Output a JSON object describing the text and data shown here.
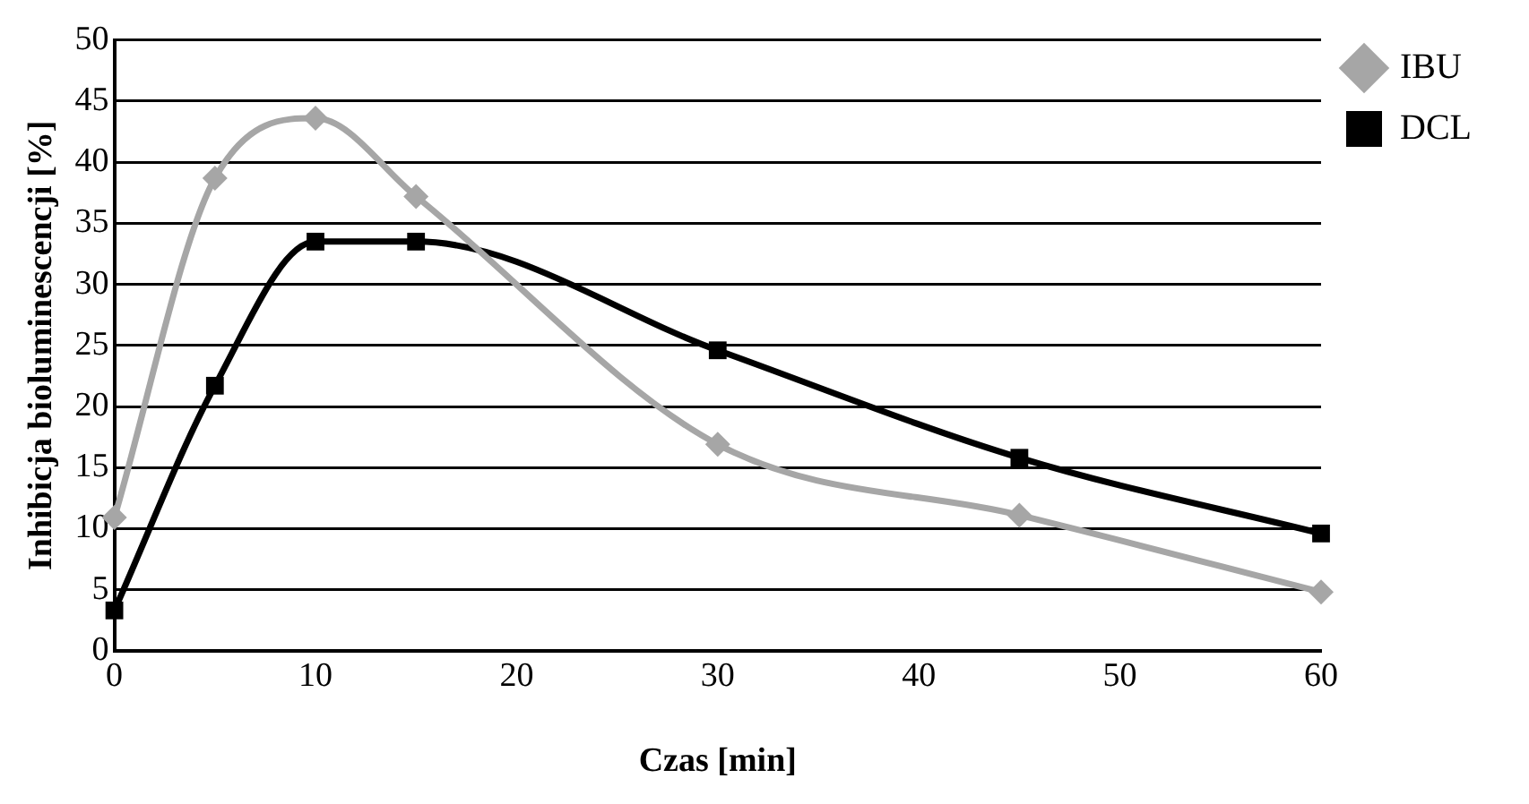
{
  "chart_data": {
    "type": "line",
    "xlabel": "Czas [min]",
    "ylabel": "Inhibicja bioluminescencji [%]",
    "x": [
      0,
      5,
      10,
      15,
      30,
      45,
      60
    ],
    "series": [
      {
        "name": "IBU",
        "color": "#a6a6a6",
        "marker": "diamond",
        "values": [
          10.9,
          38.7,
          43.6,
          37.2,
          16.9,
          11.1,
          4.8
        ]
      },
      {
        "name": "DCL",
        "color": "#000000",
        "marker": "square",
        "values": [
          3.3,
          21.7,
          33.5,
          33.5,
          24.6,
          15.8,
          9.6
        ]
      }
    ],
    "xlim": [
      0,
      60
    ],
    "xticks": [
      0,
      10,
      20,
      30,
      40,
      50,
      60
    ],
    "ylim": [
      0,
      50
    ],
    "yticks": [
      0,
      5,
      10,
      15,
      20,
      25,
      30,
      35,
      40,
      45,
      50
    ],
    "grid": "y",
    "legend": "top right",
    "line_style": "solid"
  }
}
